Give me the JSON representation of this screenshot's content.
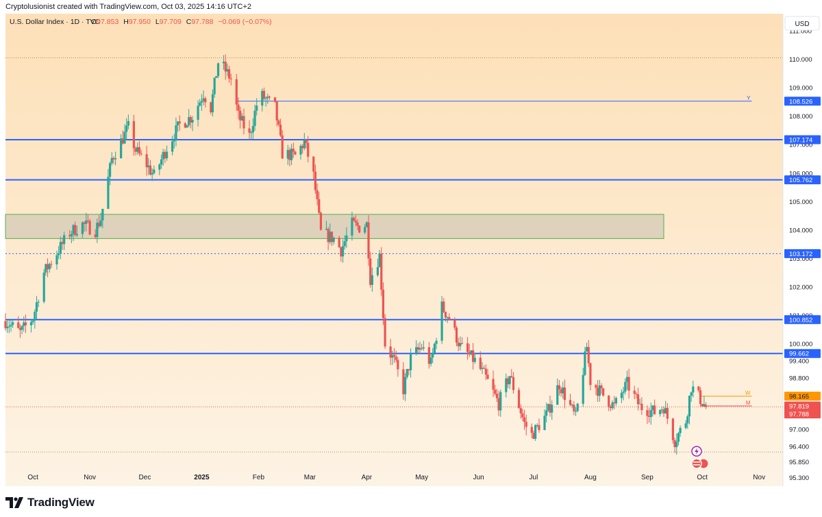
{
  "header": {
    "credit": "Cryptolusionist created with TradingView.com, Oct 03, 2025 14:16 UTC+2"
  },
  "footer": {
    "brand": "TradingView"
  },
  "colors": {
    "up": "#26a69a",
    "down": "#ef5350",
    "level": "#2962ff",
    "zone_border": "#4caf50",
    "zone_fill": "#c9c3b0",
    "bg_top": "#fde0b8",
    "bg_bottom": "#fdf3e4",
    "w_line": "#ff9800",
    "m_line": "#ef5350"
  },
  "chart_data": {
    "type": "candlestick",
    "symbol_line": {
      "name": "U.S. Dollar Index · 1D · TVC",
      "o_label": "O",
      "o": "97.853",
      "h_label": "H",
      "h": "97.950",
      "l_label": "L",
      "l": "97.709",
      "c_label": "C",
      "c": "97.788",
      "change": "−0.069 (−0.07%)"
    },
    "currency": "USD",
    "x_range": [
      "2024-09-16",
      "2025-11-14"
    ],
    "y_range": [
      95.0,
      111.6
    ],
    "x_ticks": [
      {
        "date": "2024-10-01",
        "label": "Oct"
      },
      {
        "date": "2024-11-01",
        "label": "Nov"
      },
      {
        "date": "2024-12-01",
        "label": "Dec"
      },
      {
        "date": "2025-01-01",
        "label": "2025",
        "bold": true
      },
      {
        "date": "2025-02-01",
        "label": "Feb"
      },
      {
        "date": "2025-03-01",
        "label": "Mar"
      },
      {
        "date": "2025-04-01",
        "label": "Apr"
      },
      {
        "date": "2025-05-01",
        "label": "May"
      },
      {
        "date": "2025-06-01",
        "label": "Jun"
      },
      {
        "date": "2025-07-01",
        "label": "Jul"
      },
      {
        "date": "2025-08-01",
        "label": "Aug"
      },
      {
        "date": "2025-09-01",
        "label": "Sep"
      },
      {
        "date": "2025-10-01",
        "label": "Oct"
      },
      {
        "date": "2025-11-01",
        "label": "Nov"
      }
    ],
    "y_ticks": [
      "111.000",
      "110.000",
      "109.000",
      "108.000",
      "107.000",
      "106.000",
      "105.000",
      "104.000",
      "103.000",
      "102.000",
      "101.000",
      "100.000",
      "99.400",
      "98.800",
      "97.000",
      "96.400",
      "95.850",
      "95.300"
    ],
    "levels": [
      {
        "value": 108.526,
        "label": "108.526",
        "start": "2025-01-20",
        "end": "2025-10-28",
        "thickness": 1,
        "marker": "Y"
      },
      {
        "value": 107.174,
        "label": "107.174",
        "thickness": 2
      },
      {
        "value": 105.762,
        "label": "105.762",
        "thickness": 2
      },
      {
        "value": 103.172,
        "label": "103.172",
        "thickness": 1,
        "dotted": true
      },
      {
        "value": 100.852,
        "label": "100.852",
        "thickness": 2
      },
      {
        "value": 99.662,
        "label": "99.662",
        "thickness": 2
      }
    ],
    "zone": {
      "low": 103.7,
      "high": 104.55,
      "start": "2024-09-16",
      "end": "2025-09-10"
    },
    "dotted_lines": [
      110.05,
      96.2
    ],
    "short_lines": [
      {
        "value": 98.165,
        "label": "98.165",
        "start": "2025-09-30",
        "end": "2025-10-28",
        "marker": "W",
        "color": "#ff9800"
      },
      {
        "value": 97.819,
        "label": "97.819",
        "start": "2025-09-30",
        "end": "2025-10-28",
        "marker": "M",
        "color": "#ef5350"
      }
    ],
    "last_price": {
      "value": 97.788,
      "label": "97.788"
    },
    "path": [
      [
        "2024-09-16",
        100.8
      ],
      [
        "2024-09-24",
        100.4
      ],
      [
        "2024-10-01",
        100.9
      ],
      [
        "2024-10-07",
        102.5
      ],
      [
        "2024-10-14",
        103.2
      ],
      [
        "2024-10-21",
        103.9
      ],
      [
        "2024-10-28",
        104.2
      ],
      [
        "2024-11-04",
        104.0
      ],
      [
        "2024-11-07",
        104.4
      ],
      [
        "2024-11-13",
        106.5
      ],
      [
        "2024-11-22",
        107.6
      ],
      [
        "2024-11-26",
        106.8
      ],
      [
        "2024-12-02",
        106.3
      ],
      [
        "2024-12-06",
        105.9
      ],
      [
        "2024-12-13",
        106.9
      ],
      [
        "2024-12-20",
        107.7
      ],
      [
        "2024-12-27",
        108.0
      ],
      [
        "2025-01-02",
        108.8
      ],
      [
        "2025-01-06",
        108.3
      ],
      [
        "2025-01-10",
        109.9
      ],
      [
        "2025-01-13",
        109.7
      ],
      [
        "2025-01-17",
        109.3
      ],
      [
        "2025-01-21",
        108.0
      ],
      [
        "2025-01-27",
        107.3
      ],
      [
        "2025-01-31",
        108.4
      ],
      [
        "2025-02-03",
        108.7
      ],
      [
        "2025-02-10",
        108.3
      ],
      [
        "2025-02-14",
        106.7
      ],
      [
        "2025-02-21",
        106.6
      ],
      [
        "2025-02-26",
        107.1
      ],
      [
        "2025-03-03",
        105.9
      ],
      [
        "2025-03-07",
        103.9
      ],
      [
        "2025-03-14",
        103.7
      ],
      [
        "2025-03-18",
        103.3
      ],
      [
        "2025-03-24",
        104.2
      ],
      [
        "2025-03-28",
        104.1
      ],
      [
        "2025-04-01",
        104.2
      ],
      [
        "2025-04-03",
        102.3
      ],
      [
        "2025-04-08",
        103.1
      ],
      [
        "2025-04-11",
        100.0
      ],
      [
        "2025-04-16",
        99.4
      ],
      [
        "2025-04-21",
        98.4
      ],
      [
        "2025-04-25",
        99.5
      ],
      [
        "2025-05-01",
        99.9
      ],
      [
        "2025-05-06",
        99.3
      ],
      [
        "2025-05-12",
        101.3
      ],
      [
        "2025-05-16",
        100.9
      ],
      [
        "2025-05-22",
        99.9
      ],
      [
        "2025-05-30",
        99.4
      ],
      [
        "2025-06-05",
        98.8
      ],
      [
        "2025-06-12",
        97.9
      ],
      [
        "2025-06-18",
        98.9
      ],
      [
        "2025-06-26",
        97.2
      ],
      [
        "2025-06-30",
        96.8
      ],
      [
        "2025-07-08",
        97.5
      ],
      [
        "2025-07-15",
        98.6
      ],
      [
        "2025-07-24",
        97.4
      ],
      [
        "2025-07-30",
        99.9
      ],
      [
        "2025-08-01",
        98.7
      ],
      [
        "2025-08-08",
        98.2
      ],
      [
        "2025-08-14",
        97.8
      ],
      [
        "2025-08-21",
        98.6
      ],
      [
        "2025-08-28",
        97.8
      ],
      [
        "2025-09-05",
        97.6
      ],
      [
        "2025-09-10",
        97.8
      ],
      [
        "2025-09-16",
        96.6
      ],
      [
        "2025-09-22",
        97.3
      ],
      [
        "2025-09-25",
        98.5
      ],
      [
        "2025-10-03",
        97.79
      ]
    ],
    "last_candle": {
      "date": "2025-10-03",
      "o": 97.853,
      "h": 97.95,
      "l": 97.709,
      "c": 97.788
    }
  }
}
